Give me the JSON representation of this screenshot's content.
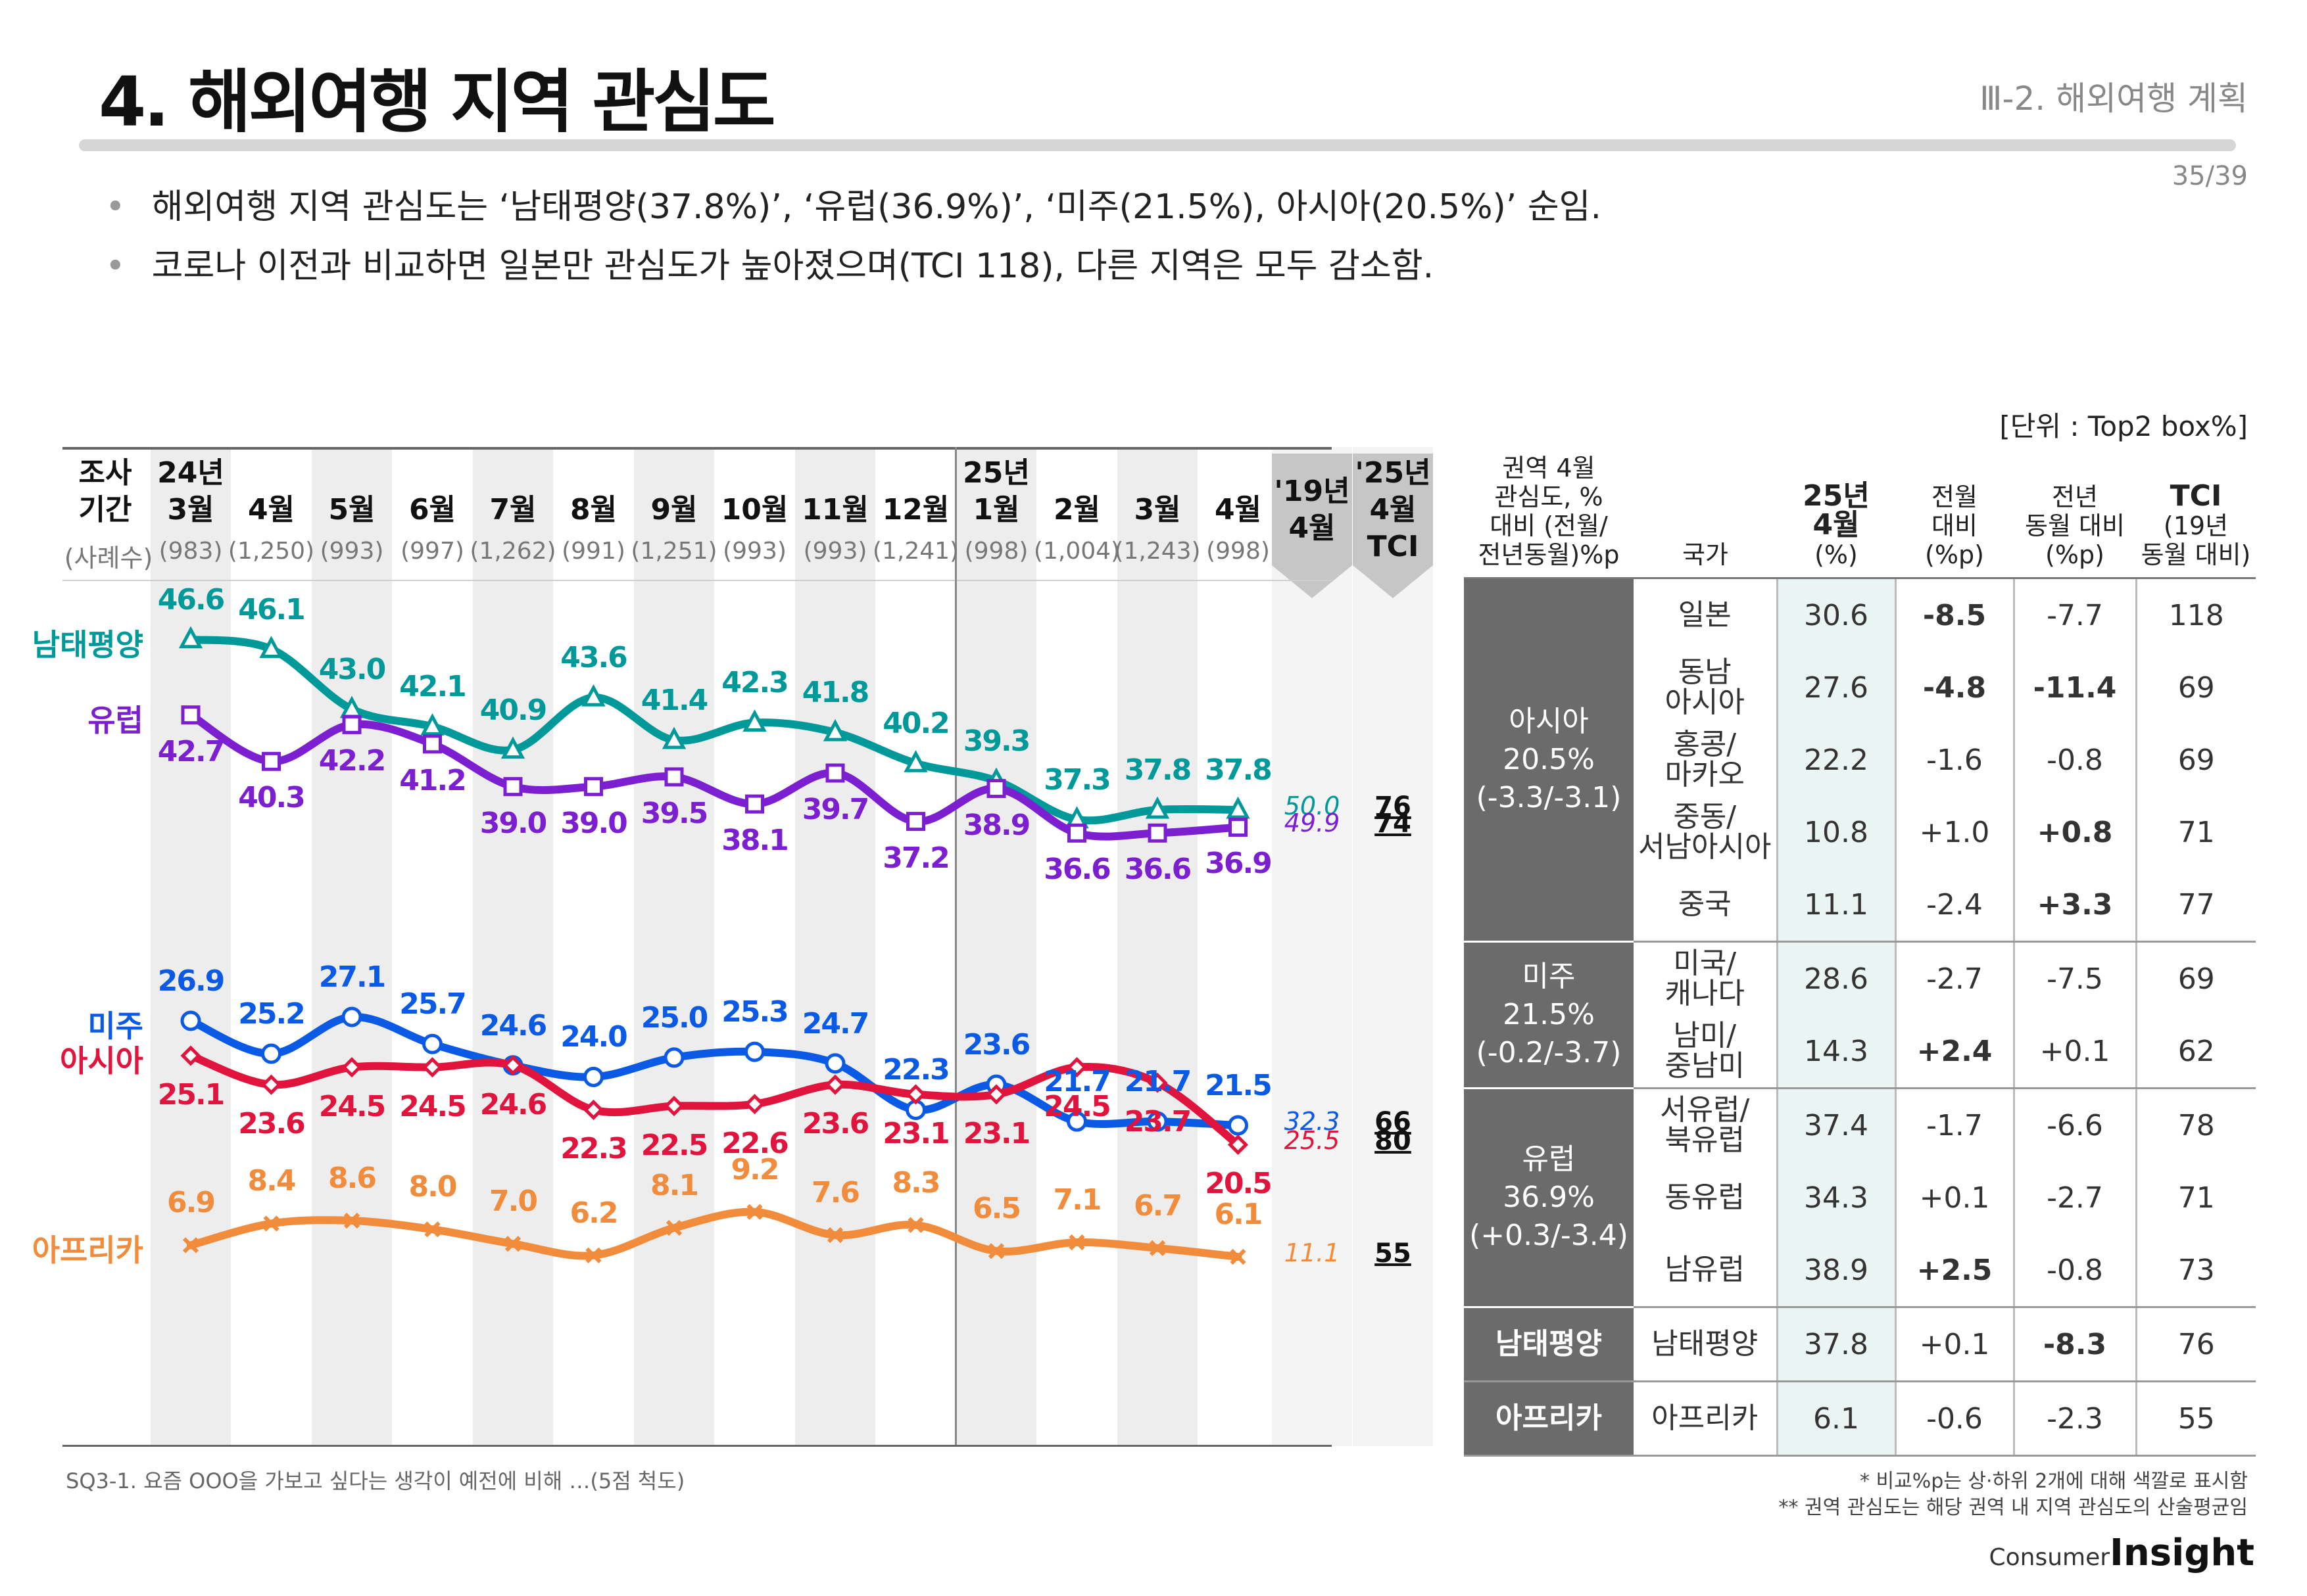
{
  "header": {
    "title": "4. 해외여행 지역 관심도",
    "section": "Ⅲ-2. 해외여행 계획",
    "page": "35/39"
  },
  "bullets": [
    "해외여행 지역 관심도는 ‘남태평양(37.8%)’, ‘유럽(36.9%)’, ‘미주(21.5%), 아시아(20.5%)’ 순임.",
    "코로나 이전과 비교하면 일본만 관심도가 높아졌으며(TCI 118), 다른 지역은 모두 감소함."
  ],
  "unit": "[단위 : Top2 box%]",
  "chart_data": {
    "type": "line",
    "row_label_period": "조사\n기간",
    "row_label_n": "(사례수)",
    "categories": [
      "24년\n3월",
      "4월",
      "5월",
      "6월",
      "7월",
      "8월",
      "9월",
      "10월",
      "11월",
      "12월",
      "25년\n1월",
      "2월",
      "3월",
      "4월"
    ],
    "sample_sizes": [
      "(983)",
      "(1,250)",
      "(993)",
      "(997)",
      "(1,262)",
      "(991)",
      "(1,251)",
      "(993)",
      "(993)",
      "(1,241)",
      "(998)",
      "(1,004)",
      "(1,243)",
      "(998)"
    ],
    "ref_header": "'19년\n4월",
    "tci_header": "'25년\n4월\nTCI",
    "series": [
      {
        "name": "남태평양",
        "color": "#00999a",
        "marker": "triangle",
        "values": [
          46.6,
          46.1,
          43.0,
          42.1,
          40.9,
          43.6,
          41.4,
          42.3,
          41.8,
          40.2,
          39.3,
          37.3,
          37.8,
          37.8
        ],
        "ref2019": "50.0",
        "tci": "76"
      },
      {
        "name": "유럽",
        "color": "#7b1fd1",
        "marker": "square",
        "values": [
          42.7,
          40.3,
          42.2,
          41.2,
          39.0,
          39.0,
          39.5,
          38.1,
          39.7,
          37.2,
          38.9,
          36.6,
          36.6,
          36.9
        ],
        "ref2019": "49.9",
        "tci": "74"
      },
      {
        "name": "미주",
        "color": "#0a5ae6",
        "marker": "circle",
        "values": [
          26.9,
          25.2,
          27.1,
          25.7,
          24.6,
          24.0,
          25.0,
          25.3,
          24.7,
          22.3,
          23.6,
          21.7,
          21.7,
          21.5
        ],
        "ref2019": "32.3",
        "tci": "66"
      },
      {
        "name": "아시아",
        "color": "#e0143c",
        "marker": "diamond",
        "values": [
          25.1,
          23.6,
          24.5,
          24.5,
          24.6,
          22.3,
          22.5,
          22.6,
          23.6,
          23.1,
          23.1,
          24.5,
          23.7,
          20.5
        ],
        "ref2019": "25.5",
        "tci": "80"
      },
      {
        "name": "아프리카",
        "color": "#f08c3c",
        "marker": "x",
        "values": [
          6.9,
          8.4,
          8.6,
          8.0,
          7.0,
          6.2,
          8.1,
          9.2,
          7.6,
          8.3,
          6.5,
          7.1,
          6.7,
          6.1
        ],
        "ref2019": "11.1",
        "tci": "55"
      }
    ]
  },
  "table": {
    "headers": {
      "region": "권역 4월\n관심도, %\n대비 (전월/\n전년동월)%p",
      "country": "국가",
      "cur": "25년\n4월",
      "cur_unit": "(%)",
      "mom": "전월\n대비\n(%p)",
      "yoy": "전년\n동월 대비\n(%p)",
      "tci": "TCI",
      "tci_sub": "(19년\n동월 대비)"
    },
    "groups": [
      {
        "region": "아시아\n20.5%\n(-3.3/-3.1)",
        "rows": [
          {
            "country": "일본",
            "cur": "30.6",
            "mom": "-8.5",
            "yoy": "-7.7",
            "tci": "118",
            "mom_hl": "neg",
            "yoy_hl": ""
          },
          {
            "country": "동남\n아시아",
            "cur": "27.6",
            "mom": "-4.8",
            "yoy": "-11.4",
            "tci": "69",
            "mom_hl": "neg",
            "yoy_hl": "neg"
          },
          {
            "country": "홍콩/\n마카오",
            "cur": "22.2",
            "mom": "-1.6",
            "yoy": "-0.8",
            "tci": "69",
            "mom_hl": "",
            "yoy_hl": ""
          },
          {
            "country": "중동/\n서남아시아",
            "cur": "10.8",
            "mom": "+1.0",
            "yoy": "+0.8",
            "tci": "71",
            "mom_hl": "",
            "yoy_hl": "pos"
          },
          {
            "country": "중국",
            "cur": "11.1",
            "mom": "-2.4",
            "yoy": "+3.3",
            "tci": "77",
            "mom_hl": "",
            "yoy_hl": "pos"
          }
        ]
      },
      {
        "region": "미주\n21.5%\n(-0.2/-3.7)",
        "rows": [
          {
            "country": "미국/\n캐나다",
            "cur": "28.6",
            "mom": "-2.7",
            "yoy": "-7.5",
            "tci": "69",
            "mom_hl": "",
            "yoy_hl": ""
          },
          {
            "country": "남미/\n중남미",
            "cur": "14.3",
            "mom": "+2.4",
            "yoy": "+0.1",
            "tci": "62",
            "mom_hl": "pos",
            "yoy_hl": ""
          }
        ]
      },
      {
        "region": "유럽\n36.9%\n(+0.3/-3.4)",
        "rows": [
          {
            "country": "서유럽/\n북유럽",
            "cur": "37.4",
            "mom": "-1.7",
            "yoy": "-6.6",
            "tci": "78",
            "mom_hl": "",
            "yoy_hl": ""
          },
          {
            "country": "동유럽",
            "cur": "34.3",
            "mom": "+0.1",
            "yoy": "-2.7",
            "tci": "71",
            "mom_hl": "",
            "yoy_hl": ""
          },
          {
            "country": "남유럽",
            "cur": "38.9",
            "mom": "+2.5",
            "yoy": "-0.8",
            "tci": "73",
            "mom_hl": "pos",
            "yoy_hl": ""
          }
        ]
      },
      {
        "region": "남태평양",
        "rows": [
          {
            "country": "남태평양",
            "cur": "37.8",
            "mom": "+0.1",
            "yoy": "-8.3",
            "tci": "76",
            "mom_hl": "",
            "yoy_hl": "neg"
          }
        ]
      },
      {
        "region": "아프리카",
        "rows": [
          {
            "country": "아프리카",
            "cur": "6.1",
            "mom": "-0.6",
            "yoy": "-2.3",
            "tci": "55",
            "mom_hl": "",
            "yoy_hl": ""
          }
        ]
      }
    ]
  },
  "footer": {
    "question": "SQ3-1. 요즘 OOO을 가보고 싶다는 생각이 예전에 비해 …(5점 척도)",
    "note1": "* 비교%p는 상·하위 2개에 대해 색깔로 표시함",
    "note2": "** 권역 관심도는 해당 권역 내 지역 관심도의 산술평균임",
    "logo_small": "Consumer",
    "logo_big": "Insight"
  }
}
